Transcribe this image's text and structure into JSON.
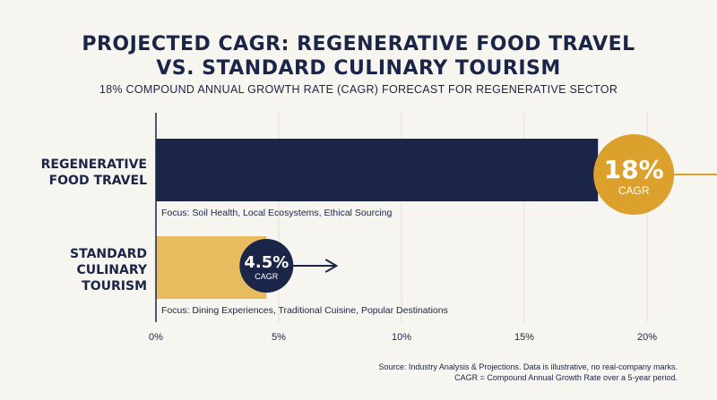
{
  "chart_data": {
    "type": "bar",
    "orientation": "horizontal",
    "title_line1": "PROJECTED CAGR: REGENERATIVE FOOD TRAVEL",
    "title_line2": "VS. STANDARD CULINARY TOURISM",
    "subtitle": "18% COMPOUND ANNUAL GROWTH RATE (CAGR) FORECAST FOR REGENERATIVE SECTOR",
    "categories": [
      {
        "line1": "REGENERATIVE",
        "line2": "FOOD TRAVEL",
        "line3": ""
      },
      {
        "line1": "STANDARD",
        "line2": "CULINARY",
        "line3": "TOURISM"
      }
    ],
    "values": [
      18,
      4.5
    ],
    "value_labels": [
      "18%",
      "4.5%"
    ],
    "badge_sublabel": "CAGR",
    "focus_notes": [
      "Focus: Soil Health, Local Ecosystems, Ethical Sourcing",
      "Focus: Dining Experiences, Traditional Cuisine, Popular Destinations"
    ],
    "xlim": [
      0,
      20
    ],
    "x_ticks": [
      0,
      5,
      10,
      15,
      20
    ],
    "x_tick_labels": [
      "0%",
      "5%",
      "10%",
      "15%",
      "20%"
    ],
    "grid": true,
    "colors": {
      "bar_regenerative": "#1a2547",
      "bar_standard": "#e6bc5e",
      "badge_regenerative": "#dca02c",
      "badge_standard": "#1a2547",
      "arrow_regenerative": "#dca02c",
      "arrow_standard": "#1a2547",
      "text": "#1a2547",
      "background": "#f7f5ef"
    }
  },
  "source_line1": "Source: Industry Analysis & Projections. Data is illustrative, no real-company marks.",
  "source_line2": "CAGR = Compound Annual Growth Rate over a 5-year period."
}
